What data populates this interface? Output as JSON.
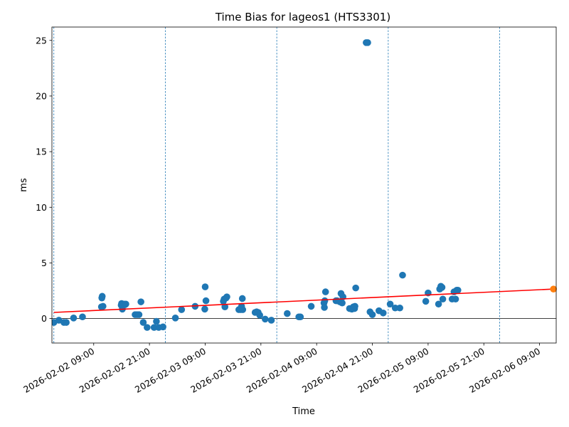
{
  "chart_data": {
    "type": "scatter",
    "title": "Time Bias for lageos1 (HTS3301)",
    "xlabel": "Time",
    "ylabel": "ms",
    "x_ticks": [
      "2026-02-02 09:00",
      "2026-02-02 21:00",
      "2026-02-03 09:00",
      "2026-02-03 21:00",
      "2026-02-04 09:00",
      "2026-02-04 21:00",
      "2026-02-05 09:00",
      "2026-02-05 21:00",
      "2026-02-06 09:00"
    ],
    "y_ticks": [
      "0",
      "5",
      "10",
      "15",
      "20",
      "25"
    ],
    "xlim": [
      "2026-02-02 00:00",
      "2026-02-06 12:35"
    ],
    "ylim": [
      -2.2,
      26.2
    ],
    "zero_line": 0,
    "vertical_lines": [
      "2026-02-02 00:25",
      "2026-02-03 00:25",
      "2026-02-04 00:25",
      "2026-02-05 00:25",
      "2026-02-06 00:25"
    ],
    "trend_line": {
      "x": [
        "2026-02-02 00:25",
        "2026-02-06 12:00"
      ],
      "y": [
        0.55,
        2.65
      ]
    },
    "highlight_point": {
      "x": "2026-02-06 12:00",
      "y": 2.65
    },
    "series": [
      {
        "x": [
          "2026-02-02 00:25",
          "2026-02-02 01:30",
          "2026-02-02 02:35",
          "2026-02-02 03:05",
          "2026-02-02 04:40",
          "2026-02-02 06:35",
          "2026-02-02 10:40",
          "2026-02-02 10:45",
          "2026-02-02 10:50",
          "2026-02-02 11:00",
          "2026-02-02 14:55",
          "2026-02-02 15:00",
          "2026-02-02 15:10",
          "2026-02-02 15:30",
          "2026-02-02 15:45",
          "2026-02-02 15:55",
          "2026-02-02 17:55",
          "2026-02-02 18:20",
          "2026-02-02 18:45",
          "2026-02-02 19:10",
          "2026-02-02 19:40",
          "2026-02-02 20:30",
          "2026-02-02 22:00",
          "2026-02-02 22:30",
          "2026-02-02 23:00",
          "2026-02-02 23:55",
          "2026-02-03 02:35",
          "2026-02-03 03:55",
          "2026-02-03 06:50",
          "2026-02-03 08:55",
          "2026-02-03 09:00",
          "2026-02-03 09:10",
          "2026-02-03 12:55",
          "2026-02-03 13:05",
          "2026-02-03 13:15",
          "2026-02-03 13:30",
          "2026-02-03 13:40",
          "2026-02-03 16:15",
          "2026-02-03 16:40",
          "2026-02-03 16:50",
          "2026-02-03 17:00",
          "2026-02-03 17:05",
          "2026-02-03 19:45",
          "2026-02-03 20:05",
          "2026-02-03 20:25",
          "2026-02-03 20:45",
          "2026-02-03 21:55",
          "2026-02-03 23:15",
          "2026-02-04 02:40",
          "2026-02-04 05:10",
          "2026-02-04 05:30",
          "2026-02-04 07:50",
          "2026-02-04 10:35",
          "2026-02-04 10:40",
          "2026-02-04 10:45",
          "2026-02-04 10:55",
          "2026-02-04 13:10",
          "2026-02-04 13:25",
          "2026-02-04 14:00",
          "2026-02-04 14:15",
          "2026-02-04 14:30",
          "2026-02-04 14:40",
          "2026-02-04 16:05",
          "2026-02-04 16:35",
          "2026-02-04 16:55",
          "2026-02-04 17:10",
          "2026-02-04 17:15",
          "2026-02-04 17:25",
          "2026-02-04 19:40",
          "2026-02-04 20:00",
          "2026-02-04 20:30",
          "2026-02-04 21:00",
          "2026-02-04 22:25",
          "2026-02-04 23:20",
          "2026-02-05 00:50",
          "2026-02-05 01:55",
          "2026-02-05 02:55",
          "2026-02-05 03:30",
          "2026-02-05 08:30",
          "2026-02-05 09:00",
          "2026-02-05 11:15",
          "2026-02-05 11:30",
          "2026-02-05 11:45",
          "2026-02-05 12:00",
          "2026-02-05 12:10",
          "2026-02-05 14:10",
          "2026-02-05 14:35",
          "2026-02-05 14:55",
          "2026-02-05 15:10",
          "2026-02-05 15:25"
        ],
        "y": [
          -0.35,
          -0.15,
          -0.35,
          -0.35,
          0.05,
          0.15,
          1.05,
          1.85,
          2.0,
          1.1,
          1.2,
          1.35,
          0.85,
          1.3,
          1.25,
          1.3,
          0.35,
          0.35,
          0.35,
          1.5,
          -0.35,
          -0.8,
          -0.8,
          -0.25,
          -0.8,
          -0.75,
          0.05,
          0.8,
          1.1,
          0.85,
          2.85,
          1.6,
          1.55,
          1.75,
          1.05,
          1.85,
          1.95,
          0.8,
          0.8,
          1.1,
          1.8,
          0.8,
          0.55,
          0.6,
          0.55,
          0.3,
          -0.05,
          -0.15,
          0.45,
          0.15,
          0.15,
          1.1,
          1.4,
          1.0,
          1.6,
          2.4,
          1.6,
          1.6,
          1.5,
          2.25,
          1.4,
          1.95,
          0.9,
          0.85,
          1.05,
          0.9,
          1.1,
          2.75,
          24.8,
          24.8,
          0.6,
          0.35,
          0.7,
          0.5,
          1.3,
          0.95,
          0.95,
          3.9,
          1.55,
          2.3,
          1.3,
          2.65,
          2.9,
          2.8,
          1.75,
          1.75,
          2.4,
          1.75,
          2.55,
          2.55
        ]
      }
    ],
    "colors": {
      "points": "#1f77b4",
      "trend": "#ff0000",
      "highlight": "#ff7f0e",
      "vlines": "#1f77b4",
      "zero": "#000000"
    },
    "grid": false
  }
}
